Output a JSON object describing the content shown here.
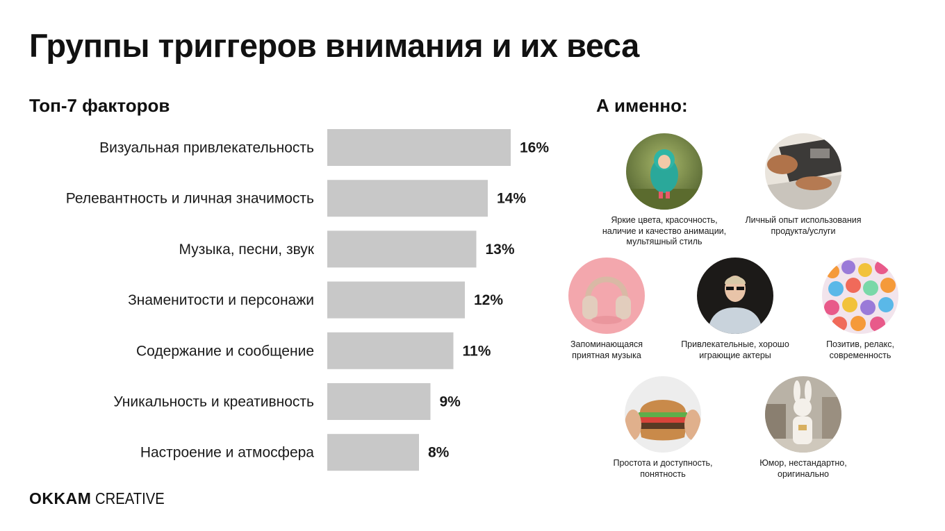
{
  "title": "Группы триггеров внимания и их веса",
  "left_heading": "Топ-7 факторов",
  "right_heading": "А именно:",
  "chart_data": {
    "type": "bar",
    "orientation": "horizontal",
    "categories": [
      "Визуальная привлекательность",
      "Релевантность и личная значимость",
      "Музыка, песни, звук",
      "Знаменитости и персонажи",
      "Содержание и сообщение",
      "Уникальность и креативность",
      "Настроение и атмосфера"
    ],
    "values": [
      16,
      14,
      13,
      12,
      11,
      9,
      8
    ],
    "value_labels": [
      "16%",
      "14%",
      "13%",
      "12%",
      "11%",
      "9%",
      "8%"
    ],
    "unit": "%",
    "grid": false,
    "legend": false,
    "bar_color": "#c8c8c8"
  },
  "details": [
    {
      "caption_lines": [
        "Яркие цвета, красочность,",
        "наличие и качество анимации,",
        "мультяшный стиль"
      ],
      "icon": "toy-figure-photo"
    },
    {
      "caption_lines": [
        "Личный опыт использования",
        "продукта/услуги"
      ],
      "icon": "laptop-hands-photo"
    },
    {
      "caption_lines": [
        "Запоминающаяся",
        "приятная музыка"
      ],
      "icon": "headphones-photo"
    },
    {
      "caption_lines": [
        "Привлекательные, хорошо",
        "играющие актеры"
      ],
      "icon": "actor-photo"
    },
    {
      "caption_lines": [
        "Позитив, релакс,",
        "современность"
      ],
      "icon": "colorful-beads-photo"
    },
    {
      "caption_lines": [
        "Простота и доступность,",
        "понятность"
      ],
      "icon": "burger-photo"
    },
    {
      "caption_lines": [
        "Юмор, нестандартно,",
        "оригинально"
      ],
      "icon": "bunny-costume-photo"
    }
  ],
  "logo": {
    "brand": "OKKAM",
    "sub": "CREATIVE"
  }
}
